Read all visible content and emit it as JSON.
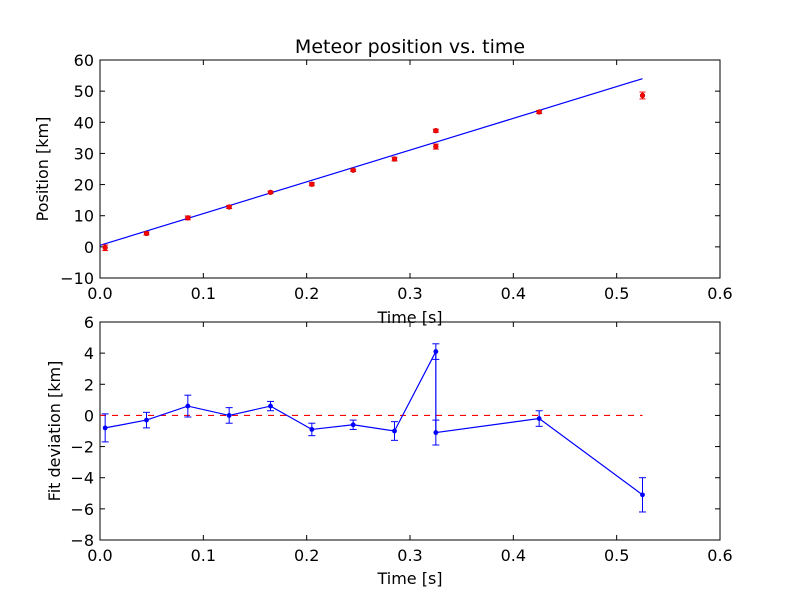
{
  "chart_data": [
    {
      "type": "scatter",
      "title": "Meteor position vs. time",
      "xlabel": "Time [s]",
      "ylabel": "Position [km]",
      "xlim": [
        0.0,
        0.6
      ],
      "ylim": [
        -10,
        60
      ],
      "xticks": [
        "0.0",
        "0.1",
        "0.2",
        "0.3",
        "0.4",
        "0.5",
        "0.6"
      ],
      "yticks": [
        "−10",
        "0",
        "10",
        "20",
        "30",
        "40",
        "50",
        "60"
      ],
      "grid": false,
      "colors": {
        "points": "#ff0000",
        "fit": "#0000ff"
      },
      "series": [
        {
          "x": [
            0.005,
            0.045,
            0.085,
            0.125,
            0.165,
            0.205,
            0.245,
            0.285,
            0.325,
            0.325,
            0.425,
            0.525
          ],
          "y": [
            -0.3,
            4.3,
            9.3,
            12.8,
            17.5,
            20.1,
            24.6,
            28.2,
            37.3,
            32.2,
            43.3,
            48.6
          ],
          "yerr": [
            0.9,
            0.5,
            0.6,
            0.5,
            0.4,
            0.5,
            0.4,
            0.6,
            0.5,
            0.8,
            0.5,
            1.1
          ]
        },
        {
          "x": [
            0.0,
            0.525
          ],
          "y": [
            0.5,
            54.0
          ]
        }
      ]
    },
    {
      "type": "line",
      "title": "",
      "xlabel": "Time [s]",
      "ylabel": "Fit deviation [km]",
      "xlim": [
        0.0,
        0.6
      ],
      "ylim": [
        -8,
        6
      ],
      "xticks": [
        "0.0",
        "0.1",
        "0.2",
        "0.3",
        "0.4",
        "0.5",
        "0.6"
      ],
      "yticks": [
        "−8",
        "−6",
        "−4",
        "−2",
        "0",
        "2",
        "4",
        "6"
      ],
      "grid": false,
      "colors": {
        "line": "#0000ff",
        "zero": "#ff0000"
      },
      "series": [
        {
          "x": [
            0.005,
            0.045,
            0.085,
            0.125,
            0.165,
            0.205,
            0.245,
            0.285,
            0.325,
            0.325,
            0.425,
            0.525
          ],
          "y": [
            -0.8,
            -0.3,
            0.6,
            0.0,
            0.6,
            -0.9,
            -0.6,
            -1.0,
            4.1,
            -1.1,
            -0.2,
            -5.1
          ],
          "yerr": [
            0.9,
            0.5,
            0.7,
            0.5,
            0.3,
            0.4,
            0.3,
            0.6,
            0.5,
            0.8,
            0.5,
            1.1
          ]
        },
        {
          "x": [
            0.0,
            0.525
          ],
          "y": [
            0.0,
            0.0
          ]
        }
      ]
    }
  ]
}
